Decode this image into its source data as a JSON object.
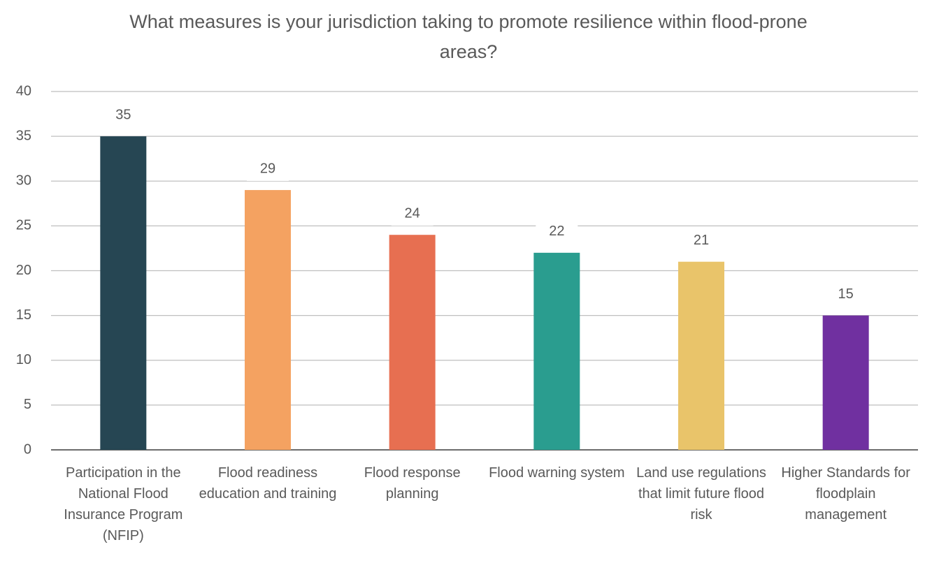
{
  "chart_data": {
    "type": "bar",
    "title": "What measures is your jurisdiction taking to promote resilience within flood-prone areas?",
    "categories": [
      "Participation in the National Flood Insurance Program (NFIP)",
      "Flood readiness education and training",
      "Flood response planning",
      "Flood warning system",
      "Land use regulations that limit future flood risk",
      "Higher Standards for floodplain management"
    ],
    "values": [
      35,
      29,
      24,
      22,
      21,
      15
    ],
    "colors": [
      "#264653",
      "#f4a261",
      "#e76f51",
      "#2a9d8f",
      "#e9c46a",
      "#7030a0"
    ],
    "ylim": [
      0,
      40
    ],
    "yticks": [
      0,
      5,
      10,
      15,
      20,
      25,
      30,
      35,
      40
    ],
    "grid": true
  }
}
